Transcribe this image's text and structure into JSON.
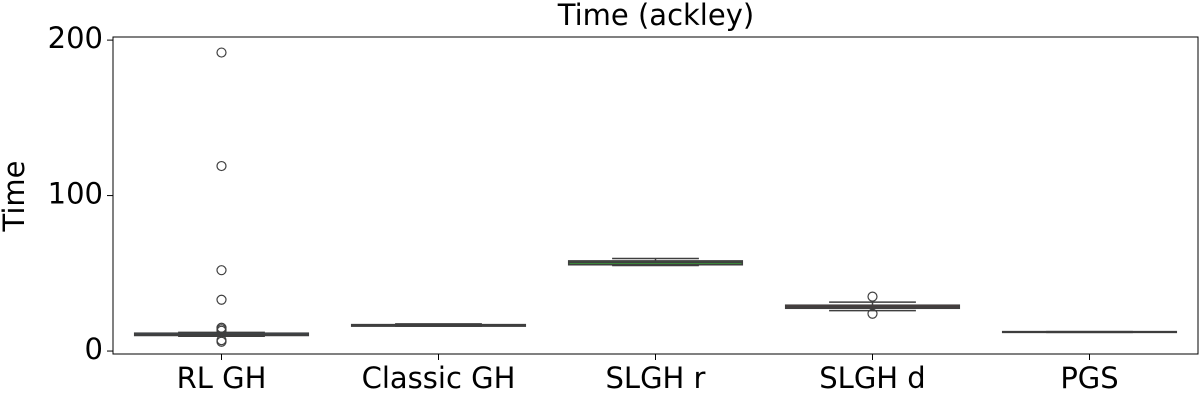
{
  "chart_data": {
    "type": "box",
    "title": "Time (ackley)",
    "y_label": "Time",
    "categories": [
      "RL GH",
      "Classic GH",
      "SLGH r",
      "SLGH d",
      "PGS"
    ],
    "boxes": [
      {
        "color": "#3274a1",
        "whislo": 9.5,
        "q1": 10,
        "med": 10.5,
        "q3": 11.5,
        "whishi": 12,
        "fliers": [
          192,
          119,
          52,
          33,
          15,
          14,
          13,
          7,
          6
        ]
      },
      {
        "color": "#e1812c",
        "whislo": 16,
        "q1": 16,
        "med": 16.5,
        "q3": 17,
        "whishi": 17.5,
        "fliers": []
      },
      {
        "color": "#3a923a",
        "whislo": 55,
        "q1": 55.5,
        "med": 57,
        "q3": 58,
        "whishi": 59.5,
        "fliers": []
      },
      {
        "color": "#c03d3e",
        "whislo": 26,
        "q1": 27.5,
        "med": 28.5,
        "q3": 29.5,
        "whishi": 31.5,
        "fliers": [
          35,
          24
        ]
      },
      {
        "color": "#9372b2",
        "whislo": 12,
        "q1": 12,
        "med": 12.3,
        "q3": 12.5,
        "whishi": 12.5,
        "fliers": []
      }
    ],
    "ylim": [
      -1.9,
      202
    ],
    "yticks": [
      0,
      100,
      200
    ]
  }
}
